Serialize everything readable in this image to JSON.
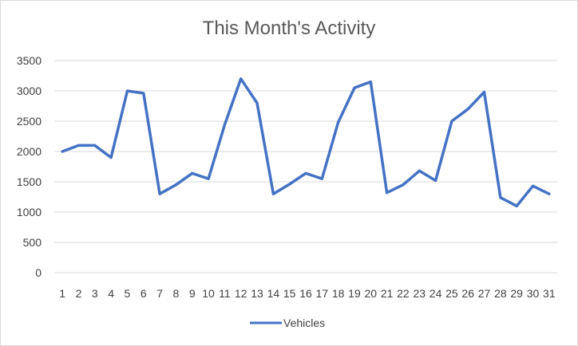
{
  "chart_data": {
    "type": "line",
    "title": "This Month's Activity",
    "xlabel": "",
    "ylabel": "",
    "categories": [
      "1",
      "2",
      "3",
      "4",
      "5",
      "6",
      "7",
      "8",
      "9",
      "10",
      "11",
      "12",
      "13",
      "14",
      "15",
      "16",
      "17",
      "18",
      "19",
      "20",
      "21",
      "22",
      "23",
      "24",
      "25",
      "26",
      "27",
      "28",
      "29",
      "30",
      "31"
    ],
    "series": [
      {
        "name": "Vehicles",
        "color": "#4472c4",
        "values": [
          2000,
          2100,
          2100,
          1900,
          3000,
          2960,
          1300,
          1450,
          1640,
          1550,
          2440,
          3200,
          2800,
          1300,
          1460,
          1640,
          1550,
          2480,
          3050,
          3150,
          1320,
          1450,
          1680,
          1520,
          2500,
          2700,
          2980,
          1240,
          1100,
          1430,
          1300
        ]
      }
    ],
    "ylim": [
      0,
      3500
    ],
    "yticks": [
      "0",
      "500",
      "1000",
      "1500",
      "2000",
      "2500",
      "3000",
      "3500"
    ],
    "grid": true,
    "legend": "bottom"
  }
}
